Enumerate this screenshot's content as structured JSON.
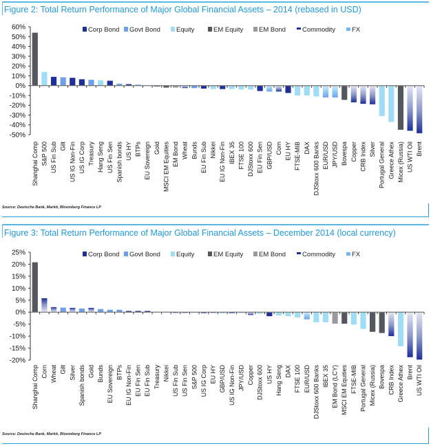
{
  "legend": [
    {
      "label": "Corp Bond",
      "key": "corp",
      "color": "#1f2f99"
    },
    {
      "label": "Govt Bond",
      "key": "govt",
      "color": "#6f9fe6"
    },
    {
      "label": "Equity",
      "key": "equity",
      "color": "#9fdcf6"
    },
    {
      "label": "EM Equity",
      "key": "emeq",
      "color": "#55575e"
    },
    {
      "label": "EM Bond",
      "key": "embond",
      "color": "#9a9a9e"
    },
    {
      "label": "Commodity",
      "key": "commodity",
      "color": "#1f2f99"
    },
    {
      "label": "FX",
      "key": "fx",
      "color": "#6fb8f0"
    }
  ],
  "figures": {
    "fig2": {
      "title": "Figure 2: Total Return Performance of Major Global Financial Assets – 2014 (rebased in USD)",
      "source": "Source: Deutsche Bank, Markit, Bloomberg Finance LP"
    },
    "fig3": {
      "title": "Figure 3: Total Return Performance of Major Global Financial Assets – December 2014 (local currency)",
      "source": "Source: Deutsche Bank, Markit, Bloomberg Finance LP"
    }
  },
  "chart_data": [
    {
      "type": "bar",
      "title": "Figure 2: Total Return Performance of Major Global Financial Assets – 2014 (rebased in USD)",
      "xlabel": "",
      "ylabel": "",
      "ylim": [
        -50,
        60
      ],
      "yticks": [
        60,
        50,
        40,
        30,
        20,
        10,
        0,
        -10,
        -20,
        -30,
        -40,
        -50
      ],
      "ytick_format": "%",
      "legend_position": "top",
      "grid": false,
      "categories": [
        "Shanghai Comp",
        "S&P 500",
        "US Fin Sub",
        "Gilt",
        "US IG Non-Fin",
        "US IG Corp",
        "Treasury",
        "Hang Seng",
        "US Fin Sen",
        "Spanish bonds",
        "US HY",
        "BTPs",
        "EU Sovereign",
        "Gold",
        "MSCI EM Equities",
        "EM Bond",
        "Wheat",
        "Bunds",
        "EU Fin Sub",
        "Nikkei",
        "EU IG Non-Fin",
        "IBEX 35",
        "FTSE 100",
        "DJStoxx 600",
        "EU Fin Sen",
        "GBP/USD",
        "Corn",
        "EU HY",
        "FTSE-MIB",
        "DAX",
        "DJStoxx 600 Banks",
        "EUR/USD",
        "JPY/USD",
        "Bovespa",
        "Copper",
        "CRB Index",
        "Silver",
        "Portugal General",
        "Greece Athex",
        "Micex (Russia)",
        "US WTI Oil",
        "Brent"
      ],
      "asset_class": [
        "emeq",
        "equity",
        "corp",
        "govt",
        "corp",
        "corp",
        "govt",
        "equity",
        "corp",
        "govt",
        "corp",
        "govt",
        "govt",
        "commodity",
        "emeq",
        "embond",
        "commodity",
        "govt",
        "corp",
        "equity",
        "corp",
        "equity",
        "equity",
        "equity",
        "corp",
        "fx",
        "commodity",
        "corp",
        "equity",
        "equity",
        "equity",
        "fx",
        "fx",
        "emeq",
        "commodity",
        "commodity",
        "commodity",
        "equity",
        "equity",
        "emeq",
        "commodity",
        "commodity"
      ],
      "values": [
        54,
        14,
        9,
        8.5,
        8,
        6.5,
        6,
        5.5,
        5,
        2,
        1.5,
        1,
        0.5,
        -1,
        -2,
        -2,
        -2.5,
        -2.5,
        -3,
        -3.5,
        -3.5,
        -3.5,
        -4,
        -4,
        -5.5,
        -6,
        -6,
        -7.5,
        -10,
        -10,
        -11,
        -12,
        -12,
        -14.5,
        -17,
        -18.5,
        -19,
        -31,
        -37,
        -45,
        -46,
        -48.5
      ]
    },
    {
      "type": "bar",
      "title": "Figure 3: Total Return Performance of Major Global Financial Assets – December 2014 (local currency)",
      "xlabel": "",
      "ylabel": "",
      "ylim": [
        -20,
        25
      ],
      "yticks": [
        25,
        20,
        15,
        10,
        5,
        0,
        -5,
        -10,
        -15,
        -20
      ],
      "ytick_format": "%",
      "legend_position": "top",
      "grid": false,
      "categories": [
        "Shanghai Comp",
        "Corn",
        "Wheat",
        "Gilt",
        "Silver",
        "Spanish bonds",
        "Gold",
        "Bunds",
        "EU Sovereign",
        "BTPs",
        "EU IG Non-Fin",
        "EU Fin Sen",
        "EU Fin Sub",
        "Treasury",
        "Nikkei",
        "US Fin Sub",
        "US Fin Sen",
        "S&P 500",
        "US IG Corp",
        "EU HY",
        "GBP/USD",
        "US IG Non-Fin",
        "JPY/USD",
        "Copper",
        "DJStoxx 600",
        "US HY",
        "Hang Seng",
        "DAX",
        "FTSE 100",
        "EUR/USD",
        "DJStoxx 600 Banks",
        "IBEX 35",
        "EM Bond (LCY)",
        "MSCI EM Equities",
        "FTSE-MIB",
        "Portugal General",
        "Micex (Russia)",
        "Bovespa",
        "CRB Index",
        "Greece Athex",
        "Brent",
        "US WTI Oil"
      ],
      "asset_class": [
        "emeq",
        "commodity",
        "commodity",
        "govt",
        "commodity",
        "govt",
        "commodity",
        "govt",
        "govt",
        "govt",
        "corp",
        "corp",
        "corp",
        "govt",
        "equity",
        "corp",
        "corp",
        "equity",
        "corp",
        "corp",
        "fx",
        "corp",
        "fx",
        "commodity",
        "equity",
        "corp",
        "equity",
        "equity",
        "equity",
        "fx",
        "equity",
        "equity",
        "embond",
        "emeq",
        "equity",
        "equity",
        "emeq",
        "emeq",
        "commodity",
        "equity",
        "commodity",
        "commodity"
      ],
      "values": [
        20.8,
        5.8,
        2.1,
        1.9,
        1.8,
        1.5,
        1.8,
        1.3,
        1.0,
        1.0,
        0.5,
        0.5,
        0.5,
        0.2,
        0.2,
        -0.3,
        -0.3,
        -0.3,
        -0.4,
        -0.3,
        -0.4,
        -0.4,
        -0.3,
        -1.2,
        -0.7,
        -1.7,
        -1.4,
        -1.7,
        -2.2,
        -3.0,
        -4.2,
        -4.2,
        -4.8,
        -4.8,
        -5.2,
        -7.0,
        -8.2,
        -8.7,
        -10.0,
        -14.2,
        -18.8,
        -19.8
      ]
    }
  ]
}
